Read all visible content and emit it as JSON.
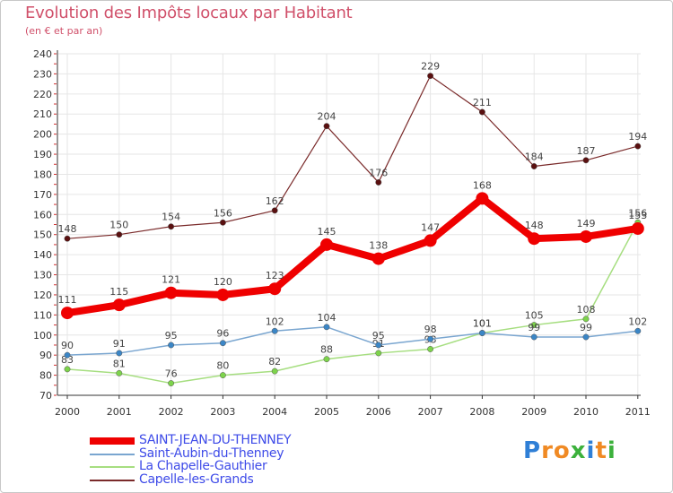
{
  "title": "Evolution des Impôts locaux par Habitant",
  "subtitle": "(en € et par an)",
  "brand": {
    "letters": [
      "P",
      "r",
      "o",
      "x",
      "i",
      "t",
      "i"
    ],
    "colors": [
      "#2f7fd6",
      "#f08a24",
      "#f08a24",
      "#3cb13c",
      "#2f7fd6",
      "#f08a24",
      "#3cb13c"
    ]
  },
  "chart_data": {
    "type": "line",
    "title": "Evolution des Impôts locaux par Habitant",
    "subtitle": "(en € et par an)",
    "xlabel": "",
    "ylabel": "",
    "ylim": [
      70,
      240
    ],
    "y_ticks": [
      70,
      80,
      90,
      100,
      110,
      120,
      130,
      140,
      150,
      160,
      170,
      180,
      190,
      200,
      210,
      220,
      230,
      240
    ],
    "categories": [
      "2000",
      "2001",
      "2002",
      "2003",
      "2004",
      "2005",
      "2006",
      "2007",
      "2008",
      "2009",
      "2010",
      "2011"
    ],
    "grid": true,
    "legend": "bottom-left",
    "series": [
      {
        "name": "Capelle-les-Grands",
        "color": "#7a2a2a",
        "dot": "#5a1010",
        "width": 1.2,
        "values": [
          148,
          150,
          154,
          156,
          162,
          204,
          176,
          229,
          211,
          184,
          187,
          194
        ]
      },
      {
        "name": "La Chapelle-Gauthier",
        "color": "#a6de80",
        "dot": "#7dd34b",
        "width": 1.5,
        "values": [
          83,
          81,
          76,
          80,
          82,
          88,
          91,
          93,
          101,
          105,
          108,
          156
        ]
      },
      {
        "name": "Saint-Aubin-du-Thenney",
        "color": "#7aa6d0",
        "dot": "#3b86c6",
        "width": 1.5,
        "values": [
          90,
          91,
          95,
          96,
          102,
          104,
          95,
          98,
          101,
          99,
          99,
          102
        ]
      },
      {
        "name": "SAINT-JEAN-DU-THENNEY",
        "color": "#ef0000",
        "dot": "#ef0000",
        "width": 8,
        "values": [
          111,
          115,
          121,
          120,
          123,
          145,
          138,
          147,
          168,
          148,
          149,
          153
        ]
      }
    ],
    "legend_order": [
      "SAINT-JEAN-DU-THENNEY",
      "Saint-Aubin-du-Thenney",
      "La Chapelle-Gauthier",
      "Capelle-les-Grands"
    ]
  }
}
